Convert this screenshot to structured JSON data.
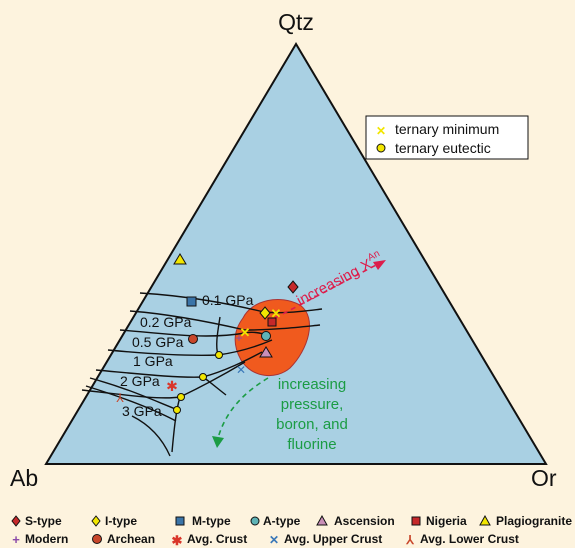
{
  "vertices": {
    "top": "Qtz",
    "left": "Ab",
    "right": "Or"
  },
  "pressure_labels": [
    "0.1 GPa",
    "0.2 GPa",
    "0.5 GPa",
    "1 GPa",
    "2 GPa",
    "3 GPa"
  ],
  "annotations": {
    "increasing_xan_prefix": "increasing X",
    "increasing_xan_sup": "An",
    "increasing_pressure": [
      "increasing",
      "pressure,",
      "boron, and",
      "fluorine"
    ]
  },
  "inset_legend": {
    "ternary_minimum": "ternary minimum",
    "ternary_eutectic": "ternary eutectic"
  },
  "bottom_legend": {
    "row1": [
      "S-type",
      "I-type",
      "M-type",
      "A-type",
      "Ascension",
      "Nigeria",
      "Plagiogranite"
    ],
    "row2": [
      "Modern",
      "Archean",
      "Avg. Crust",
      "Avg. Upper Crust",
      "Avg. Lower Crust"
    ]
  },
  "colors": {
    "background": "#fdf3de",
    "triangle_fill": "#a9d0e3",
    "field_fill": "#f05a1e",
    "ternary_minimum": "#f2e600",
    "ternary_eutectic": "#f2e600",
    "arrow_red": "#dd1d4b",
    "arrow_green": "#1b9c44",
    "s_type": "#c5282a",
    "i_type": "#f2e600",
    "m_type": "#3a74a8",
    "a_type": "#5fb3b6",
    "ascension": "#c98fb8",
    "nigeria": "#c5282a",
    "plagiogranite": "#f2e600",
    "modern": "#8a4aa8",
    "archean": "#c8462a",
    "avg_crust": "#d9362a",
    "avg_upper_crust": "#3a78b8",
    "avg_lower_crust": "#c8462a"
  }
}
